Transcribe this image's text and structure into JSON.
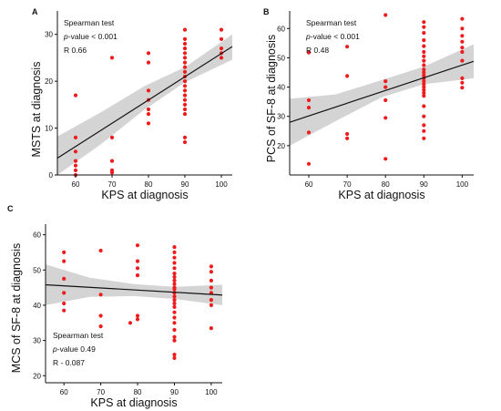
{
  "chart_data": [
    {
      "panel": "A",
      "type": "scatter",
      "xlabel": "KPS at diagnosis",
      "ylabel": "MSTS at diagnosis",
      "xlim": [
        55,
        103
      ],
      "ylim": [
        0,
        35
      ],
      "xticks": [
        60,
        70,
        80,
        90,
        100
      ],
      "yticks": [
        0,
        10,
        20,
        30
      ],
      "stats": [
        "Spearman test",
        "p-value < 0.001",
        "R 0.66"
      ],
      "fit": {
        "x": [
          55,
          103
        ],
        "y": [
          3.6,
          27.4
        ]
      },
      "ci": {
        "x": [
          55,
          67,
          79,
          90,
          103
        ],
        "upper": [
          8.2,
          13.4,
          19.0,
          23.0,
          30.0
        ],
        "lower": [
          -0.4,
          6.6,
          14.0,
          19.8,
          24.6
        ]
      },
      "points": [
        [
          60,
          17
        ],
        [
          60,
          8
        ],
        [
          60,
          5
        ],
        [
          60,
          3
        ],
        [
          60,
          2
        ],
        [
          60,
          1
        ],
        [
          60,
          0
        ],
        [
          70,
          25
        ],
        [
          70,
          8
        ],
        [
          70,
          3
        ],
        [
          70,
          1
        ],
        [
          70,
          0.5
        ],
        [
          80,
          26
        ],
        [
          80,
          24
        ],
        [
          80,
          18
        ],
        [
          80,
          16
        ],
        [
          80,
          14
        ],
        [
          80,
          13
        ],
        [
          80,
          11
        ],
        [
          90,
          31
        ],
        [
          90,
          29
        ],
        [
          90,
          28
        ],
        [
          90,
          27
        ],
        [
          90,
          26
        ],
        [
          90,
          25
        ],
        [
          90,
          24
        ],
        [
          90,
          23
        ],
        [
          90,
          22
        ],
        [
          90,
          21
        ],
        [
          90,
          20
        ],
        [
          90,
          19
        ],
        [
          90,
          18
        ],
        [
          90,
          17
        ],
        [
          90,
          16
        ],
        [
          90,
          15
        ],
        [
          90,
          14
        ],
        [
          90,
          13
        ],
        [
          90,
          8
        ],
        [
          90,
          7
        ],
        [
          100,
          31
        ],
        [
          100,
          29
        ],
        [
          100,
          27
        ],
        [
          100,
          26
        ],
        [
          100,
          25
        ]
      ]
    },
    {
      "panel": "B",
      "type": "scatter",
      "xlabel": "KPS at diagnosis",
      "ylabel": "PCS of SF-8 at diagnosis",
      "xlim": [
        55,
        103
      ],
      "ylim": [
        10,
        66
      ],
      "xticks": [
        60,
        70,
        80,
        90,
        100
      ],
      "yticks": [
        20,
        30,
        40,
        50,
        60
      ],
      "stats": [
        "Spearman test",
        "p-value < 0.001",
        "R 0.48"
      ],
      "fit": {
        "x": [
          55,
          103
        ],
        "y": [
          28.0,
          48.8
        ]
      },
      "ci": {
        "x": [
          55,
          67,
          79,
          90,
          103
        ],
        "upper": [
          36.0,
          37.5,
          42.4,
          47.0,
          54.6
        ],
        "lower": [
          20.0,
          28.4,
          36.5,
          41.0,
          43.0
        ]
      },
      "points": [
        [
          60,
          51.8
        ],
        [
          60,
          35.5
        ],
        [
          60,
          33
        ],
        [
          60,
          24.5
        ],
        [
          60,
          13.8
        ],
        [
          70,
          53.8
        ],
        [
          70,
          43.8
        ],
        [
          70,
          24
        ],
        [
          70,
          22.5
        ],
        [
          80,
          64.6
        ],
        [
          80,
          42
        ],
        [
          80,
          40
        ],
        [
          80,
          35.5
        ],
        [
          80,
          29.5
        ],
        [
          80,
          15.5
        ],
        [
          90,
          62.2
        ],
        [
          90,
          60.5
        ],
        [
          90,
          58.5
        ],
        [
          90,
          56
        ],
        [
          90,
          54
        ],
        [
          90,
          52
        ],
        [
          90,
          50.5
        ],
        [
          90,
          49
        ],
        [
          90,
          47.5
        ],
        [
          90,
          46
        ],
        [
          90,
          45
        ],
        [
          90,
          44
        ],
        [
          90,
          43
        ],
        [
          90,
          42
        ],
        [
          90,
          41
        ],
        [
          90,
          40
        ],
        [
          90,
          39
        ],
        [
          90,
          38
        ],
        [
          90,
          37
        ],
        [
          90,
          33.5
        ],
        [
          90,
          30
        ],
        [
          90,
          27
        ],
        [
          90,
          25
        ],
        [
          90,
          22.5
        ],
        [
          100,
          63.3
        ],
        [
          100,
          60
        ],
        [
          100,
          57.5
        ],
        [
          100,
          55.5
        ],
        [
          100,
          53.5
        ],
        [
          100,
          52
        ],
        [
          100,
          49
        ],
        [
          100,
          43
        ],
        [
          100,
          41.5
        ],
        [
          100,
          39.8
        ]
      ]
    },
    {
      "panel": "C",
      "type": "scatter",
      "xlabel": "KPS at diagnosis",
      "ylabel": "MCS of SF-8 at diagnosis",
      "xlim": [
        55,
        103
      ],
      "ylim": [
        18,
        63
      ],
      "xticks": [
        60,
        70,
        80,
        90,
        100
      ],
      "yticks": [
        20,
        30,
        40,
        50,
        60
      ],
      "stats": [
        "Spearman test",
        "p-value 0.49",
        "R - 0.087"
      ],
      "fit": {
        "x": [
          55,
          103
        ],
        "y": [
          45.8,
          42.9
        ]
      },
      "ci": {
        "x": [
          55,
          67,
          79,
          90,
          103
        ],
        "upper": [
          51.6,
          47.8,
          46.0,
          45.2,
          45.8
        ],
        "lower": [
          40.0,
          42.4,
          42.6,
          41.8,
          40.0
        ]
      },
      "points": [
        [
          60,
          55
        ],
        [
          60,
          52.5
        ],
        [
          60,
          47.5
        ],
        [
          60,
          43.5
        ],
        [
          60,
          40.5
        ],
        [
          60,
          38.5
        ],
        [
          70,
          55.5
        ],
        [
          70,
          43
        ],
        [
          70,
          37
        ],
        [
          70,
          34
        ],
        [
          78,
          35
        ],
        [
          80,
          57
        ],
        [
          80,
          52.5
        ],
        [
          80,
          50.5
        ],
        [
          80,
          48.5
        ],
        [
          80,
          37
        ],
        [
          80,
          36
        ],
        [
          90,
          56.5
        ],
        [
          90,
          55
        ],
        [
          90,
          53.5
        ],
        [
          90,
          52
        ],
        [
          90,
          50.5
        ],
        [
          90,
          49
        ],
        [
          90,
          48
        ],
        [
          90,
          47
        ],
        [
          90,
          46
        ],
        [
          90,
          45
        ],
        [
          90,
          44.5
        ],
        [
          90,
          43.5
        ],
        [
          90,
          42.5
        ],
        [
          90,
          41.5
        ],
        [
          90,
          40.5
        ],
        [
          90,
          39.5
        ],
        [
          90,
          38
        ],
        [
          90,
          36.5
        ],
        [
          90,
          35
        ],
        [
          90,
          33
        ],
        [
          90,
          31
        ],
        [
          90,
          30
        ],
        [
          90,
          26
        ],
        [
          90,
          25
        ],
        [
          100,
          51
        ],
        [
          100,
          49.5
        ],
        [
          100,
          47
        ],
        [
          100,
          45
        ],
        [
          100,
          43.5
        ],
        [
          100,
          41.5
        ],
        [
          100,
          40
        ],
        [
          100,
          33.5
        ]
      ]
    }
  ]
}
